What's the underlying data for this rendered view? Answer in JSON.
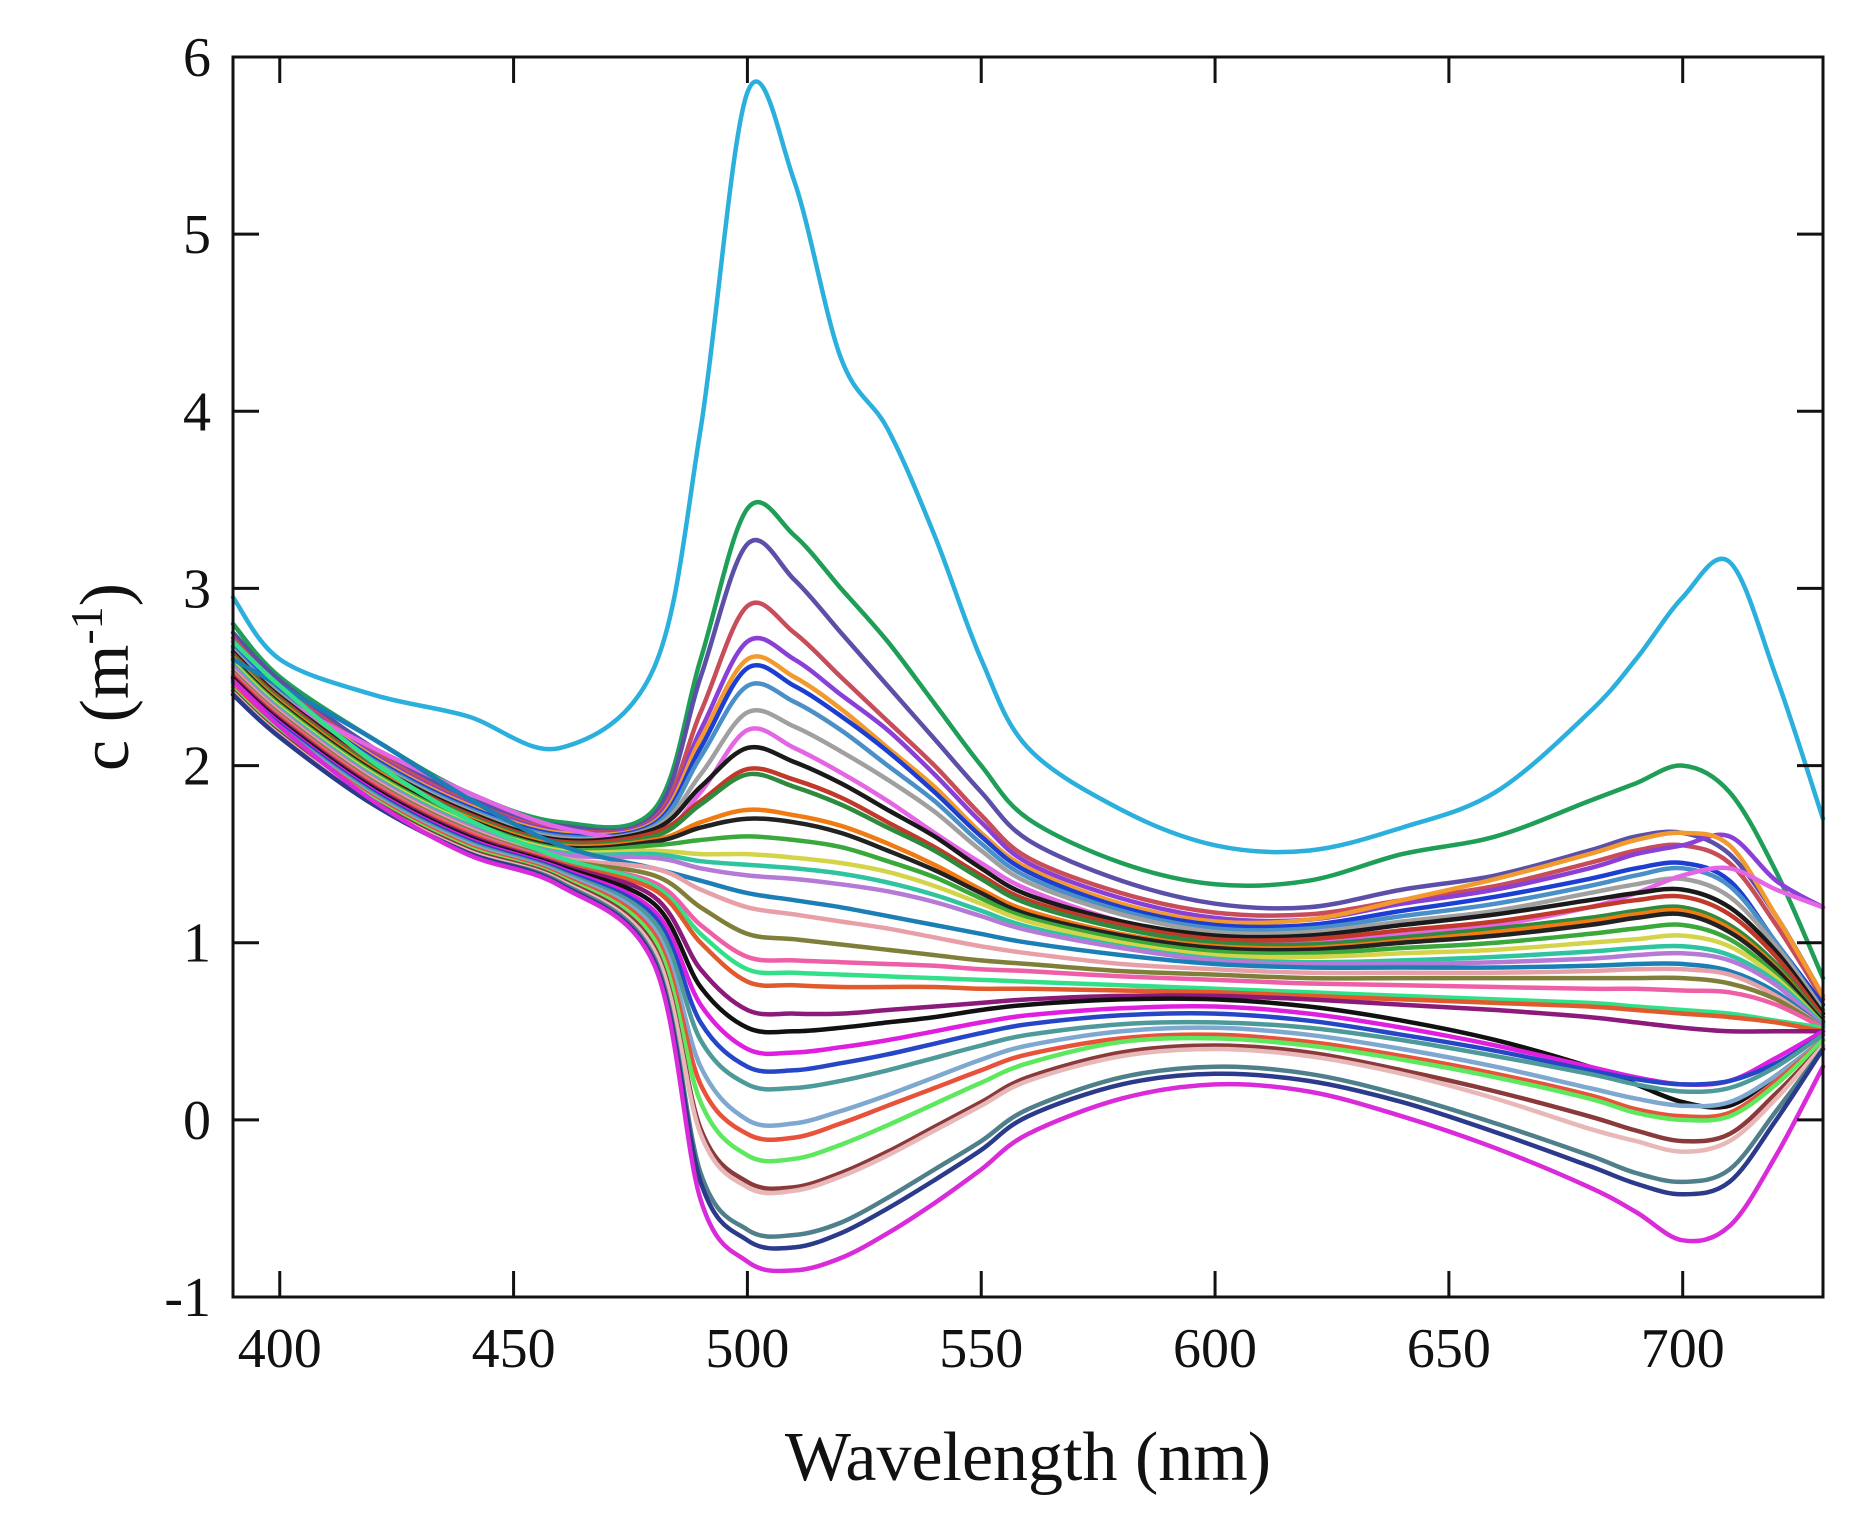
{
  "chart_data": {
    "type": "line",
    "title": "",
    "xlabel": "Wavelength (nm)",
    "ylabel_prefix": "c (m",
    "ylabel_sup": "-1",
    "ylabel_suffix": ")",
    "xlim": [
      390,
      730
    ],
    "ylim": [
      -1,
      6
    ],
    "xticks": [
      400,
      450,
      500,
      550,
      600,
      650,
      700
    ],
    "yticks": [
      -1,
      0,
      1,
      2,
      3,
      4,
      5,
      6
    ],
    "xtick_labels": [
      "400",
      "450",
      "500",
      "550",
      "600",
      "650",
      "700"
    ],
    "ytick_labels": [
      "-1",
      "0",
      "1",
      "2",
      "3",
      "4",
      "5",
      "6"
    ],
    "grid": false,
    "legend": "none",
    "x": [
      390,
      400,
      420,
      440,
      460,
      480,
      490,
      500,
      510,
      520,
      530,
      540,
      550,
      560,
      580,
      600,
      620,
      640,
      660,
      680,
      690,
      700,
      710,
      720,
      730
    ],
    "series": [
      {
        "name": "s1",
        "color": "#2bb0dd",
        "values": [
          2.95,
          2.6,
          2.4,
          2.28,
          2.1,
          2.55,
          3.9,
          5.8,
          5.3,
          4.3,
          3.9,
          3.3,
          2.6,
          2.1,
          1.75,
          1.55,
          1.52,
          1.65,
          1.85,
          2.3,
          2.6,
          2.95,
          3.15,
          2.5,
          1.7
        ]
      },
      {
        "name": "s2",
        "color": "#1f9e58",
        "values": [
          2.8,
          2.5,
          2.15,
          1.85,
          1.68,
          1.75,
          2.6,
          3.45,
          3.3,
          3.0,
          2.7,
          2.35,
          2.0,
          1.7,
          1.45,
          1.33,
          1.35,
          1.5,
          1.6,
          1.8,
          1.9,
          2.0,
          1.85,
          1.4,
          0.8
        ]
      },
      {
        "name": "s3",
        "color": "#5b4fa8",
        "values": [
          2.75,
          2.48,
          2.1,
          1.82,
          1.66,
          1.72,
          2.5,
          3.25,
          3.05,
          2.75,
          2.45,
          2.15,
          1.85,
          1.58,
          1.35,
          1.22,
          1.2,
          1.3,
          1.38,
          1.52,
          1.6,
          1.62,
          1.5,
          1.15,
          0.7
        ]
      },
      {
        "name": "s4",
        "color": "#c84d5a",
        "values": [
          2.72,
          2.45,
          2.08,
          1.8,
          1.64,
          1.7,
          2.3,
          2.9,
          2.75,
          2.5,
          2.25,
          2.0,
          1.72,
          1.48,
          1.28,
          1.17,
          1.16,
          1.24,
          1.32,
          1.45,
          1.52,
          1.55,
          1.45,
          1.1,
          0.68
        ]
      },
      {
        "name": "s5",
        "color": "#8a3fd6",
        "values": [
          2.7,
          2.44,
          2.06,
          1.79,
          1.63,
          1.69,
          2.2,
          2.7,
          2.6,
          2.4,
          2.2,
          1.95,
          1.68,
          1.45,
          1.25,
          1.14,
          1.13,
          1.22,
          1.3,
          1.42,
          1.5,
          1.55,
          1.6,
          1.35,
          1.2
        ]
      },
      {
        "name": "s6",
        "color": "#f29a2e",
        "values": [
          2.68,
          2.43,
          2.05,
          1.78,
          1.62,
          1.68,
          2.15,
          2.6,
          2.5,
          2.32,
          2.1,
          1.88,
          1.62,
          1.42,
          1.22,
          1.12,
          1.13,
          1.24,
          1.36,
          1.5,
          1.58,
          1.62,
          1.55,
          1.15,
          0.7
        ]
      },
      {
        "name": "s7",
        "color": "#1c3fd1",
        "values": [
          2.67,
          2.42,
          2.04,
          1.77,
          1.61,
          1.67,
          2.1,
          2.55,
          2.45,
          2.28,
          2.08,
          1.85,
          1.6,
          1.4,
          1.2,
          1.1,
          1.1,
          1.18,
          1.26,
          1.36,
          1.42,
          1.45,
          1.35,
          1.0,
          0.65
        ]
      },
      {
        "name": "s8",
        "color": "#4a8fc7",
        "values": [
          2.66,
          2.41,
          2.03,
          1.76,
          1.6,
          1.66,
          2.05,
          2.45,
          2.36,
          2.2,
          2.0,
          1.8,
          1.56,
          1.37,
          1.18,
          1.08,
          1.08,
          1.15,
          1.22,
          1.32,
          1.38,
          1.42,
          1.32,
          1.0,
          0.62
        ]
      },
      {
        "name": "s9",
        "color": "#a0a0a0",
        "values": [
          2.65,
          2.4,
          2.02,
          1.75,
          1.59,
          1.65,
          1.95,
          2.3,
          2.22,
          2.08,
          1.92,
          1.74,
          1.52,
          1.34,
          1.16,
          1.06,
          1.06,
          1.12,
          1.18,
          1.28,
          1.33,
          1.36,
          1.26,
          0.98,
          0.62
        ]
      },
      {
        "name": "s10",
        "color": "#e566e5",
        "values": [
          2.55,
          2.38,
          2.1,
          1.85,
          1.65,
          1.6,
          1.85,
          2.2,
          2.1,
          1.96,
          1.8,
          1.62,
          1.45,
          1.3,
          1.12,
          1.02,
          1.0,
          1.05,
          1.1,
          1.2,
          1.28,
          1.38,
          1.42,
          1.3,
          1.2
        ]
      },
      {
        "name": "s11",
        "color": "#1a1a1a",
        "values": [
          2.64,
          2.39,
          2.01,
          1.74,
          1.58,
          1.64,
          1.88,
          2.1,
          2.02,
          1.9,
          1.75,
          1.6,
          1.42,
          1.27,
          1.12,
          1.04,
          1.04,
          1.1,
          1.16,
          1.24,
          1.28,
          1.3,
          1.2,
          0.95,
          0.6
        ]
      },
      {
        "name": "s12",
        "color": "#c0392b",
        "values": [
          2.63,
          2.38,
          2.0,
          1.73,
          1.57,
          1.62,
          1.8,
          1.98,
          1.92,
          1.82,
          1.68,
          1.54,
          1.38,
          1.24,
          1.1,
          1.02,
          1.02,
          1.07,
          1.12,
          1.2,
          1.24,
          1.26,
          1.16,
          0.92,
          0.58
        ]
      },
      {
        "name": "s13",
        "color": "#2e8b3e",
        "values": [
          2.62,
          2.37,
          1.99,
          1.72,
          1.56,
          1.6,
          1.78,
          1.95,
          1.88,
          1.78,
          1.65,
          1.52,
          1.36,
          1.22,
          1.08,
          1.0,
          0.99,
          1.03,
          1.08,
          1.14,
          1.18,
          1.2,
          1.1,
          0.88,
          0.56
        ]
      },
      {
        "name": "s14",
        "color": "#f07b12",
        "values": [
          2.61,
          2.36,
          1.98,
          1.71,
          1.55,
          1.58,
          1.68,
          1.75,
          1.72,
          1.66,
          1.56,
          1.44,
          1.3,
          1.18,
          1.05,
          0.98,
          0.97,
          1.01,
          1.06,
          1.12,
          1.16,
          1.18,
          1.08,
          0.86,
          0.55
        ]
      },
      {
        "name": "s15",
        "color": "#222222",
        "values": [
          2.6,
          2.35,
          1.97,
          1.7,
          1.54,
          1.57,
          1.65,
          1.7,
          1.68,
          1.62,
          1.52,
          1.41,
          1.28,
          1.16,
          1.04,
          0.97,
          0.96,
          1.0,
          1.04,
          1.1,
          1.14,
          1.16,
          1.06,
          0.85,
          0.55
        ]
      },
      {
        "name": "s16",
        "color": "#3aa83a",
        "values": [
          2.59,
          2.34,
          1.96,
          1.69,
          1.53,
          1.55,
          1.58,
          1.6,
          1.58,
          1.54,
          1.46,
          1.37,
          1.25,
          1.14,
          1.02,
          0.95,
          0.94,
          0.97,
          1.0,
          1.05,
          1.08,
          1.1,
          1.02,
          0.82,
          0.54
        ]
      },
      {
        "name": "s17",
        "color": "#d4d44a",
        "values": [
          2.58,
          2.33,
          1.95,
          1.68,
          1.52,
          1.52,
          1.5,
          1.5,
          1.48,
          1.45,
          1.4,
          1.32,
          1.22,
          1.12,
          1.0,
          0.93,
          0.92,
          0.94,
          0.96,
          1.0,
          1.02,
          1.04,
          0.98,
          0.8,
          0.54
        ]
      },
      {
        "name": "s18",
        "color": "#2ec4a0",
        "values": [
          2.57,
          2.32,
          1.94,
          1.67,
          1.51,
          1.5,
          1.46,
          1.44,
          1.42,
          1.39,
          1.34,
          1.27,
          1.18,
          1.09,
          0.98,
          0.91,
          0.89,
          0.9,
          0.92,
          0.95,
          0.97,
          0.98,
          0.93,
          0.78,
          0.54
        ]
      },
      {
        "name": "s19",
        "color": "#b57ad6",
        "values": [
          2.56,
          2.31,
          1.93,
          1.66,
          1.5,
          1.48,
          1.42,
          1.38,
          1.36,
          1.33,
          1.29,
          1.23,
          1.15,
          1.07,
          0.97,
          0.9,
          0.88,
          0.88,
          0.89,
          0.91,
          0.93,
          0.94,
          0.9,
          0.76,
          0.53
        ]
      },
      {
        "name": "s20",
        "color": "#1b7fb5",
        "values": [
          2.6,
          2.45,
          2.15,
          1.82,
          1.55,
          1.42,
          1.35,
          1.28,
          1.24,
          1.2,
          1.15,
          1.1,
          1.05,
          1.0,
          0.93,
          0.88,
          0.86,
          0.86,
          0.86,
          0.87,
          0.88,
          0.88,
          0.84,
          0.72,
          0.52
        ]
      },
      {
        "name": "s21",
        "color": "#e8a0a8",
        "values": [
          2.54,
          2.3,
          1.92,
          1.65,
          1.48,
          1.42,
          1.3,
          1.2,
          1.16,
          1.12,
          1.08,
          1.03,
          0.98,
          0.94,
          0.88,
          0.85,
          0.83,
          0.83,
          0.83,
          0.84,
          0.85,
          0.85,
          0.82,
          0.7,
          0.52
        ]
      },
      {
        "name": "s22",
        "color": "#7f7f3a",
        "values": [
          2.53,
          2.29,
          1.91,
          1.64,
          1.47,
          1.38,
          1.2,
          1.05,
          1.02,
          0.99,
          0.96,
          0.93,
          0.9,
          0.88,
          0.84,
          0.82,
          0.8,
          0.8,
          0.8,
          0.8,
          0.8,
          0.8,
          0.77,
          0.68,
          0.52
        ]
      },
      {
        "name": "s23",
        "color": "#ef5fa7",
        "values": [
          2.52,
          2.28,
          1.9,
          1.63,
          1.46,
          1.34,
          1.1,
          0.92,
          0.9,
          0.89,
          0.88,
          0.87,
          0.85,
          0.84,
          0.81,
          0.79,
          0.77,
          0.76,
          0.75,
          0.74,
          0.74,
          0.73,
          0.72,
          0.65,
          0.52
        ]
      },
      {
        "name": "s24",
        "color": "#33e08a",
        "values": [
          2.7,
          2.45,
          2.02,
          1.7,
          1.48,
          1.32,
          1.05,
          0.85,
          0.83,
          0.82,
          0.81,
          0.8,
          0.79,
          0.78,
          0.76,
          0.74,
          0.72,
          0.7,
          0.68,
          0.66,
          0.64,
          0.62,
          0.6,
          0.56,
          0.52
        ]
      },
      {
        "name": "s25",
        "color": "#e05a2b",
        "values": [
          2.51,
          2.27,
          1.89,
          1.62,
          1.45,
          1.3,
          1.0,
          0.78,
          0.76,
          0.75,
          0.75,
          0.75,
          0.74,
          0.74,
          0.73,
          0.72,
          0.7,
          0.68,
          0.66,
          0.64,
          0.62,
          0.6,
          0.58,
          0.55,
          0.5
        ]
      },
      {
        "name": "s26",
        "color": "#8c1a7a",
        "values": [
          2.5,
          2.26,
          1.88,
          1.61,
          1.44,
          1.26,
          0.85,
          0.62,
          0.6,
          0.6,
          0.62,
          0.64,
          0.66,
          0.68,
          0.7,
          0.7,
          0.68,
          0.65,
          0.62,
          0.58,
          0.55,
          0.52,
          0.5,
          0.5,
          0.5
        ]
      },
      {
        "name": "s27",
        "color": "#111111",
        "values": [
          2.49,
          2.25,
          1.87,
          1.6,
          1.43,
          1.22,
          0.75,
          0.52,
          0.5,
          0.52,
          0.55,
          0.58,
          0.62,
          0.65,
          0.68,
          0.68,
          0.64,
          0.56,
          0.45,
          0.3,
          0.2,
          0.1,
          0.08,
          0.25,
          0.45
        ]
      },
      {
        "name": "s28",
        "color": "#e01ee0",
        "values": [
          2.48,
          2.24,
          1.86,
          1.59,
          1.42,
          1.18,
          0.65,
          0.4,
          0.38,
          0.41,
          0.45,
          0.5,
          0.55,
          0.59,
          0.63,
          0.64,
          0.6,
          0.52,
          0.42,
          0.3,
          0.24,
          0.2,
          0.22,
          0.35,
          0.5
        ]
      },
      {
        "name": "s29",
        "color": "#2547c7",
        "values": [
          2.47,
          2.23,
          1.85,
          1.58,
          1.41,
          1.15,
          0.55,
          0.3,
          0.28,
          0.32,
          0.37,
          0.43,
          0.49,
          0.54,
          0.59,
          0.6,
          0.56,
          0.48,
          0.39,
          0.28,
          0.23,
          0.2,
          0.22,
          0.32,
          0.48
        ]
      },
      {
        "name": "s30",
        "color": "#4e9a9a",
        "values": [
          2.46,
          2.22,
          1.84,
          1.57,
          1.4,
          1.12,
          0.45,
          0.2,
          0.18,
          0.22,
          0.28,
          0.35,
          0.42,
          0.48,
          0.54,
          0.55,
          0.52,
          0.45,
          0.36,
          0.26,
          0.2,
          0.16,
          0.18,
          0.3,
          0.48
        ]
      },
      {
        "name": "s31",
        "color": "#7fa8d0",
        "values": [
          2.45,
          2.21,
          1.83,
          1.56,
          1.39,
          1.08,
          0.3,
          0.0,
          -0.02,
          0.05,
          0.14,
          0.24,
          0.34,
          0.42,
          0.5,
          0.52,
          0.48,
          0.4,
          0.3,
          0.18,
          0.12,
          0.08,
          0.1,
          0.25,
          0.45
        ]
      },
      {
        "name": "s32",
        "color": "#e8523a",
        "values": [
          2.44,
          2.2,
          1.82,
          1.55,
          1.38,
          1.05,
          0.2,
          -0.08,
          -0.1,
          -0.02,
          0.08,
          0.18,
          0.28,
          0.37,
          0.46,
          0.48,
          0.44,
          0.36,
          0.26,
          0.14,
          0.06,
          0.02,
          0.04,
          0.22,
          0.45
        ]
      },
      {
        "name": "s33",
        "color": "#5de85d",
        "values": [
          2.43,
          2.19,
          1.81,
          1.54,
          1.37,
          1.02,
          0.1,
          -0.2,
          -0.22,
          -0.14,
          -0.03,
          0.09,
          0.21,
          0.32,
          0.44,
          0.46,
          0.42,
          0.34,
          0.24,
          0.12,
          0.04,
          0.0,
          0.02,
          0.2,
          0.45
        ]
      },
      {
        "name": "s34",
        "color": "#8a3a3a",
        "values": [
          2.42,
          2.18,
          1.8,
          1.53,
          1.36,
          0.98,
          -0.05,
          -0.35,
          -0.38,
          -0.3,
          -0.18,
          -0.04,
          0.1,
          0.24,
          0.38,
          0.42,
          0.38,
          0.28,
          0.16,
          0.02,
          -0.06,
          -0.12,
          -0.08,
          0.15,
          0.42
        ]
      },
      {
        "name": "s35",
        "color": "#e8b8b8",
        "values": [
          2.41,
          2.17,
          1.79,
          1.52,
          1.35,
          0.96,
          -0.08,
          -0.38,
          -0.4,
          -0.32,
          -0.2,
          -0.06,
          0.08,
          0.22,
          0.36,
          0.4,
          0.36,
          0.26,
          0.12,
          -0.05,
          -0.12,
          -0.18,
          -0.12,
          0.12,
          0.42
        ]
      },
      {
        "name": "s36",
        "color": "#4f7f8a",
        "values": [
          2.4,
          2.16,
          1.78,
          1.51,
          1.34,
          0.92,
          -0.3,
          -0.62,
          -0.65,
          -0.58,
          -0.44,
          -0.28,
          -0.12,
          0.06,
          0.24,
          0.3,
          0.26,
          0.14,
          -0.02,
          -0.2,
          -0.3,
          -0.35,
          -0.28,
          0.05,
          0.4
        ]
      },
      {
        "name": "s37",
        "color": "#2b3a8a",
        "values": [
          2.4,
          2.16,
          1.78,
          1.51,
          1.33,
          0.9,
          -0.35,
          -0.68,
          -0.72,
          -0.64,
          -0.5,
          -0.34,
          -0.17,
          0.02,
          0.2,
          0.26,
          0.22,
          0.1,
          -0.07,
          -0.26,
          -0.36,
          -0.42,
          -0.35,
          0.0,
          0.4
        ]
      },
      {
        "name": "s38",
        "color": "#d92bd9",
        "values": [
          2.48,
          2.22,
          1.8,
          1.5,
          1.32,
          0.88,
          -0.45,
          -0.8,
          -0.85,
          -0.78,
          -0.64,
          -0.47,
          -0.28,
          -0.08,
          0.12,
          0.2,
          0.16,
          0.02,
          -0.16,
          -0.38,
          -0.52,
          -0.68,
          -0.6,
          -0.2,
          0.3
        ]
      }
    ]
  }
}
